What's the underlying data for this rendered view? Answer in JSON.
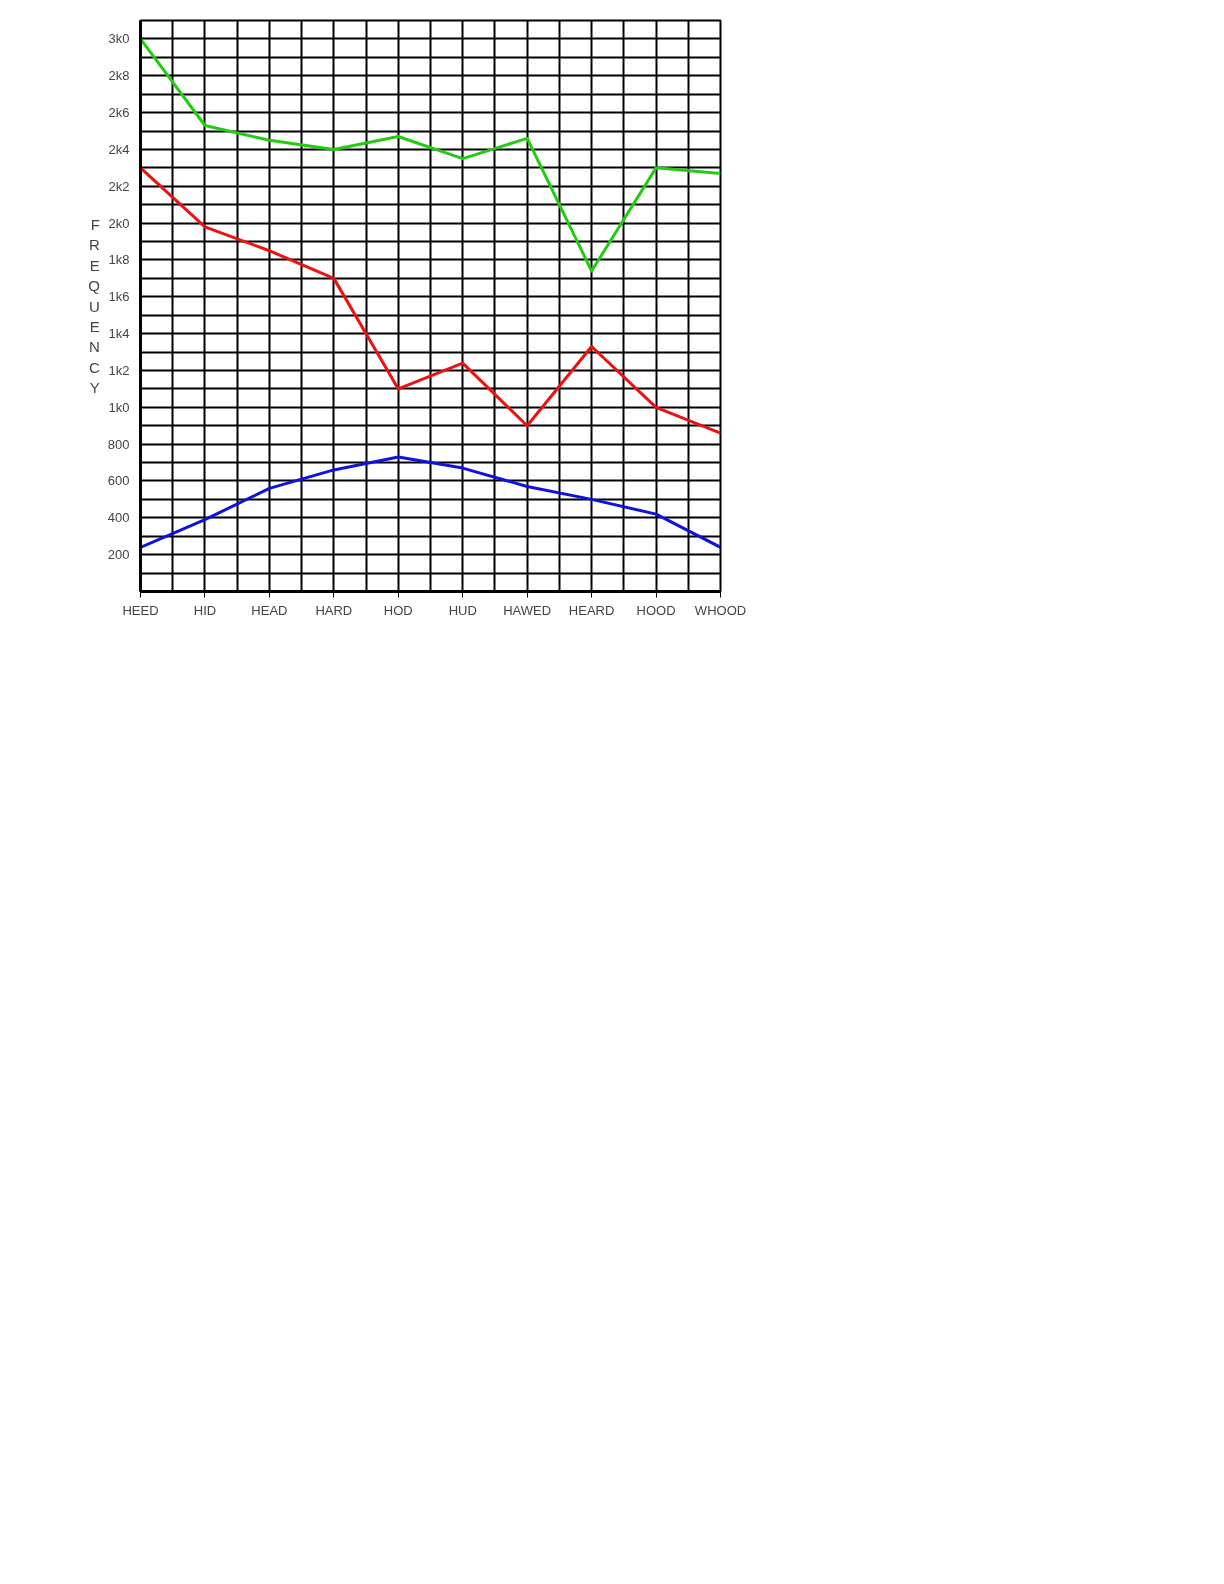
{
  "chart_data": {
    "type": "line",
    "ylabel": "FREQUENCY",
    "categories": [
      "HEED",
      "HID",
      "HEAD",
      "HARD",
      "HOD",
      "HUD",
      "HAWED",
      "HEARD",
      "HOOD",
      "WHOOD"
    ],
    "series": [
      {
        "color": "#22cc11",
        "values": [
          3000,
          2530,
          2450,
          2400,
          2470,
          2350,
          2460,
          1740,
          2300,
          2270
        ]
      },
      {
        "color": "#ee1111",
        "values": [
          2300,
          1980,
          1850,
          1700,
          1100,
          1240,
          900,
          1330,
          1000,
          860
        ]
      },
      {
        "color": "#1111dd",
        "values": [
          240,
          390,
          560,
          660,
          730,
          670,
          570,
          500,
          420,
          240
        ]
      }
    ],
    "ylim": [
      0,
      3100
    ],
    "yticks": [
      {
        "value": 200,
        "label": "200"
      },
      {
        "value": 400,
        "label": "400"
      },
      {
        "value": 600,
        "label": "600"
      },
      {
        "value": 800,
        "label": "800"
      },
      {
        "value": 1000,
        "label": "1k0"
      },
      {
        "value": 1200,
        "label": "1k2"
      },
      {
        "value": 1400,
        "label": "1k4"
      },
      {
        "value": 1600,
        "label": "1k6"
      },
      {
        "value": 1800,
        "label": "1k8"
      },
      {
        "value": 2000,
        "label": "2k0"
      },
      {
        "value": 2200,
        "label": "2k2"
      },
      {
        "value": 2400,
        "label": "2k4"
      },
      {
        "value": 2600,
        "label": "2k6"
      },
      {
        "value": 2800,
        "label": "2k8"
      },
      {
        "value": 3000,
        "label": "3k0"
      }
    ],
    "grid": true,
    "line_style": "solid"
  }
}
